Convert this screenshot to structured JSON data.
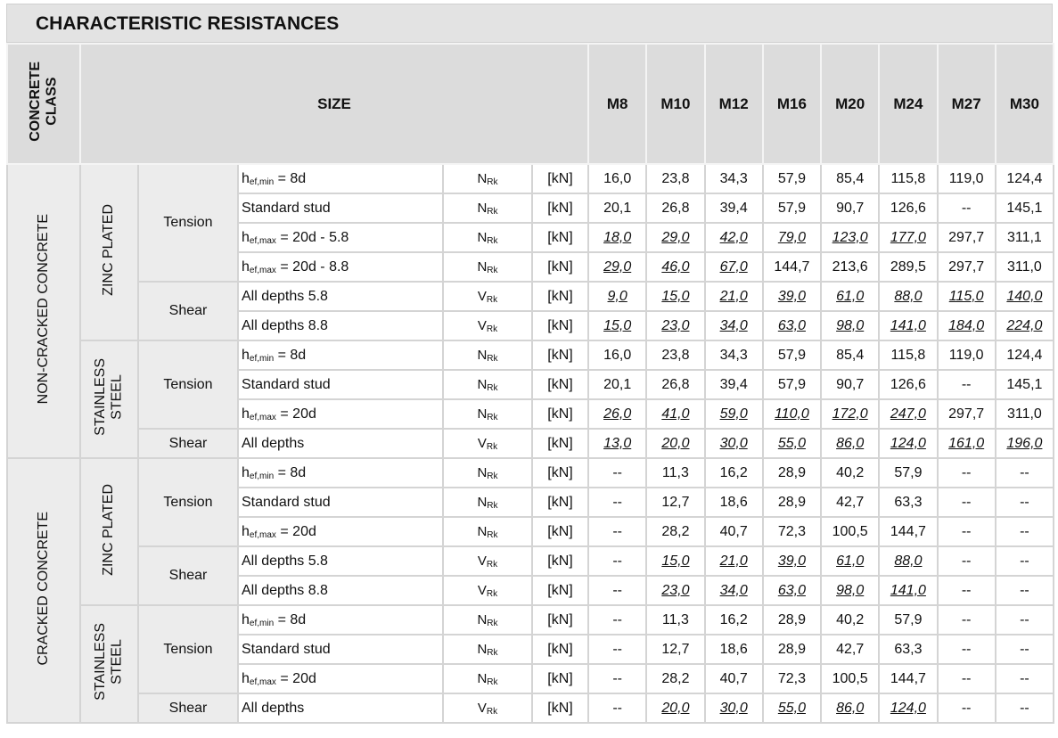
{
  "title": "CHARACTERISTIC RESISTANCES",
  "header": {
    "class": [
      "CONCRETE",
      "CLASS"
    ],
    "size": "SIZE",
    "sizes": [
      "M8",
      "M10",
      "M12",
      "M16",
      "M20",
      "M24",
      "M27",
      "M30"
    ]
  },
  "groups": [
    {
      "class": "NON-CRACKED CONCRETE",
      "materials": [
        {
          "name": [
            "ZINC PLATED"
          ],
          "loads": [
            {
              "name": "Tension",
              "rows": [
                {
                  "label": {
                    "base": "h",
                    "sub": "ef,min",
                    "text": "= 8d"
                  },
                  "symbol": {
                    "base": "N",
                    "sub": "Rk"
                  },
                  "unit": "[kN]",
                  "values": [
                    "16,0",
                    "23,8",
                    "34,3",
                    "57,9",
                    "85,4",
                    "115,8",
                    "119,0",
                    "124,4"
                  ],
                  "underlined": [
                    false,
                    false,
                    false,
                    false,
                    false,
                    false,
                    false,
                    false
                  ]
                },
                {
                  "label": "Standard stud",
                  "symbol": {
                    "base": "N",
                    "sub": "Rk"
                  },
                  "unit": "[kN]",
                  "values": [
                    "20,1",
                    "26,8",
                    "39,4",
                    "57,9",
                    "90,7",
                    "126,6",
                    "--",
                    "145,1"
                  ],
                  "underlined": [
                    false,
                    false,
                    false,
                    false,
                    false,
                    false,
                    false,
                    false
                  ]
                },
                {
                  "label": {
                    "base": "h",
                    "sub": "ef,max",
                    "text": "= 20d - 5.8"
                  },
                  "symbol": {
                    "base": "N",
                    "sub": "Rk"
                  },
                  "unit": "[kN]",
                  "values": [
                    "18,0",
                    "29,0",
                    "42,0",
                    "79,0",
                    "123,0",
                    "177,0",
                    "297,7",
                    "311,1"
                  ],
                  "underlined": [
                    true,
                    true,
                    true,
                    true,
                    true,
                    true,
                    false,
                    false
                  ]
                },
                {
                  "label": {
                    "base": "h",
                    "sub": "ef,max",
                    "text": "= 20d - 8.8"
                  },
                  "symbol": {
                    "base": "N",
                    "sub": "Rk"
                  },
                  "unit": "[kN]",
                  "values": [
                    "29,0",
                    "46,0",
                    "67,0",
                    "144,7",
                    "213,6",
                    "289,5",
                    "297,7",
                    "311,0"
                  ],
                  "underlined": [
                    true,
                    true,
                    true,
                    false,
                    false,
                    false,
                    false,
                    false
                  ]
                }
              ]
            },
            {
              "name": "Shear",
              "rows": [
                {
                  "label": "All depths 5.8",
                  "symbol": {
                    "base": "V",
                    "sub": "Rk"
                  },
                  "unit": "[kN]",
                  "values": [
                    "9,0",
                    "15,0",
                    "21,0",
                    "39,0",
                    "61,0",
                    "88,0",
                    "115,0",
                    "140,0"
                  ],
                  "underlined": [
                    true,
                    true,
                    true,
                    true,
                    true,
                    true,
                    true,
                    true
                  ]
                },
                {
                  "label": "All depths 8.8",
                  "symbol": {
                    "base": "V",
                    "sub": "Rk"
                  },
                  "unit": "[kN]",
                  "values": [
                    "15,0",
                    "23,0",
                    "34,0",
                    "63,0",
                    "98,0",
                    "141,0",
                    "184,0",
                    "224,0"
                  ],
                  "underlined": [
                    true,
                    true,
                    true,
                    true,
                    true,
                    true,
                    true,
                    true
                  ]
                }
              ]
            }
          ]
        },
        {
          "name": [
            "STAINLESS",
            "STEEL"
          ],
          "loads": [
            {
              "name": "Tension",
              "rows": [
                {
                  "label": {
                    "base": "h",
                    "sub": "ef,min",
                    "text": "= 8d"
                  },
                  "symbol": {
                    "base": "N",
                    "sub": "Rk"
                  },
                  "unit": "[kN]",
                  "values": [
                    "16,0",
                    "23,8",
                    "34,3",
                    "57,9",
                    "85,4",
                    "115,8",
                    "119,0",
                    "124,4"
                  ],
                  "underlined": [
                    false,
                    false,
                    false,
                    false,
                    false,
                    false,
                    false,
                    false
                  ]
                },
                {
                  "label": "Standard stud",
                  "symbol": {
                    "base": "N",
                    "sub": "Rk"
                  },
                  "unit": "[kN]",
                  "values": [
                    "20,1",
                    "26,8",
                    "39,4",
                    "57,9",
                    "90,7",
                    "126,6",
                    "--",
                    "145,1"
                  ],
                  "underlined": [
                    false,
                    false,
                    false,
                    false,
                    false,
                    false,
                    false,
                    false
                  ]
                },
                {
                  "label": {
                    "base": "h",
                    "sub": "ef,max",
                    "text": "= 20d"
                  },
                  "symbol": {
                    "base": "N",
                    "sub": "Rk"
                  },
                  "unit": "[kN]",
                  "values": [
                    "26,0",
                    "41,0",
                    "59,0",
                    "110,0",
                    "172,0",
                    "247,0",
                    "297,7",
                    "311,0"
                  ],
                  "underlined": [
                    true,
                    true,
                    true,
                    true,
                    true,
                    true,
                    false,
                    false
                  ]
                }
              ]
            },
            {
              "name": "Shear",
              "rows": [
                {
                  "label": "All depths",
                  "symbol": {
                    "base": "V",
                    "sub": "Rk"
                  },
                  "unit": "[kN]",
                  "values": [
                    "13,0",
                    "20,0",
                    "30,0",
                    "55,0",
                    "86,0",
                    "124,0",
                    "161,0",
                    "196,0"
                  ],
                  "underlined": [
                    true,
                    true,
                    true,
                    true,
                    true,
                    true,
                    true,
                    true
                  ]
                }
              ]
            }
          ]
        }
      ]
    },
    {
      "class": "CRACKED CONCRETE",
      "materials": [
        {
          "name": [
            "ZINC PLATED"
          ],
          "loads": [
            {
              "name": "Tension",
              "rows": [
                {
                  "label": {
                    "base": "h",
                    "sub": "ef,min",
                    "text": "= 8d"
                  },
                  "symbol": {
                    "base": "N",
                    "sub": "Rk"
                  },
                  "unit": "[kN]",
                  "values": [
                    "--",
                    "11,3",
                    "16,2",
                    "28,9",
                    "40,2",
                    "57,9",
                    "--",
                    "--"
                  ],
                  "underlined": [
                    false,
                    false,
                    false,
                    false,
                    false,
                    false,
                    false,
                    false
                  ]
                },
                {
                  "label": "Standard stud",
                  "symbol": {
                    "base": "N",
                    "sub": "Rk"
                  },
                  "unit": "[kN]",
                  "values": [
                    "--",
                    "12,7",
                    "18,6",
                    "28,9",
                    "42,7",
                    "63,3",
                    "--",
                    "--"
                  ],
                  "underlined": [
                    false,
                    false,
                    false,
                    false,
                    false,
                    false,
                    false,
                    false
                  ]
                },
                {
                  "label": {
                    "base": "h",
                    "sub": "ef,max",
                    "text": "= 20d"
                  },
                  "symbol": {
                    "base": "N",
                    "sub": "Rk"
                  },
                  "unit": "[kN]",
                  "values": [
                    "--",
                    "28,2",
                    "40,7",
                    "72,3",
                    "100,5",
                    "144,7",
                    "--",
                    "--"
                  ],
                  "underlined": [
                    false,
                    false,
                    false,
                    false,
                    false,
                    false,
                    false,
                    false
                  ]
                }
              ]
            },
            {
              "name": "Shear",
              "rows": [
                {
                  "label": "All depths 5.8",
                  "symbol": {
                    "base": "V",
                    "sub": "Rk"
                  },
                  "unit": "[kN]",
                  "values": [
                    "--",
                    "15,0",
                    "21,0",
                    "39,0",
                    "61,0",
                    "88,0",
                    "--",
                    "--"
                  ],
                  "underlined": [
                    false,
                    true,
                    true,
                    true,
                    true,
                    true,
                    false,
                    false
                  ]
                },
                {
                  "label": "All depths 8.8",
                  "symbol": {
                    "base": "V",
                    "sub": "Rk"
                  },
                  "unit": "[kN]",
                  "values": [
                    "--",
                    "23,0",
                    "34,0",
                    "63,0",
                    "98,0",
                    "141,0",
                    "--",
                    "--"
                  ],
                  "underlined": [
                    false,
                    true,
                    true,
                    true,
                    true,
                    true,
                    false,
                    false
                  ]
                }
              ]
            }
          ]
        },
        {
          "name": [
            "STAINLESS",
            "STEEL"
          ],
          "loads": [
            {
              "name": "Tension",
              "rows": [
                {
                  "label": {
                    "base": "h",
                    "sub": "ef,min",
                    "text": "= 8d"
                  },
                  "symbol": {
                    "base": "N",
                    "sub": "Rk"
                  },
                  "unit": "[kN]",
                  "values": [
                    "--",
                    "11,3",
                    "16,2",
                    "28,9",
                    "40,2",
                    "57,9",
                    "--",
                    "--"
                  ],
                  "underlined": [
                    false,
                    false,
                    false,
                    false,
                    false,
                    false,
                    false,
                    false
                  ]
                },
                {
                  "label": "Standard stud",
                  "symbol": {
                    "base": "N",
                    "sub": "Rk"
                  },
                  "unit": "[kN]",
                  "values": [
                    "--",
                    "12,7",
                    "18,6",
                    "28,9",
                    "42,7",
                    "63,3",
                    "--",
                    "--"
                  ],
                  "underlined": [
                    false,
                    false,
                    false,
                    false,
                    false,
                    false,
                    false,
                    false
                  ]
                },
                {
                  "label": {
                    "base": "h",
                    "sub": "ef,max",
                    "text": "= 20d"
                  },
                  "symbol": {
                    "base": "N",
                    "sub": "Rk"
                  },
                  "unit": "[kN]",
                  "values": [
                    "--",
                    "28,2",
                    "40,7",
                    "72,3",
                    "100,5",
                    "144,7",
                    "--",
                    "--"
                  ],
                  "underlined": [
                    false,
                    false,
                    false,
                    false,
                    false,
                    false,
                    false,
                    false
                  ]
                }
              ]
            },
            {
              "name": "Shear",
              "rows": [
                {
                  "label": "All depths",
                  "symbol": {
                    "base": "V",
                    "sub": "Rk"
                  },
                  "unit": "[kN]",
                  "values": [
                    "--",
                    "20,0",
                    "30,0",
                    "55,0",
                    "86,0",
                    "124,0",
                    "--",
                    "--"
                  ],
                  "underlined": [
                    false,
                    true,
                    true,
                    true,
                    true,
                    true,
                    false,
                    false
                  ]
                }
              ]
            }
          ]
        }
      ]
    }
  ]
}
